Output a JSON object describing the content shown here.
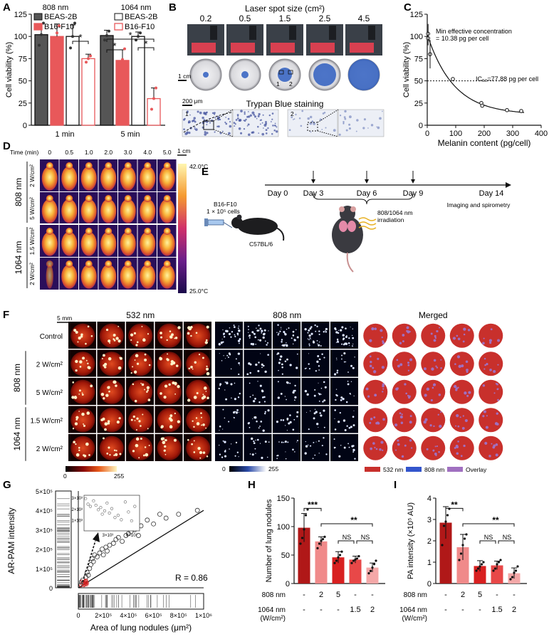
{
  "panels": {
    "A": "A",
    "B": "B",
    "C": "C",
    "D": "D",
    "E": "E",
    "F": "F",
    "G": "G",
    "H": "H",
    "I": "I"
  },
  "colors": {
    "beas": "#555555",
    "b16": "#e8585a",
    "b16_light": "#f4a3a3",
    "axis": "#111111",
    "f_red": "#c8302c",
    "f_blue": "#3355cc",
    "f_purple": "#a070c0"
  },
  "chart_data": [
    {
      "panel": "A",
      "type": "bar",
      "ylabel": "Cell viability (%)",
      "ylim": [
        0,
        125
      ],
      "yticks": [
        0,
        25,
        50,
        75,
        100,
        125
      ],
      "groups": [
        "1 min",
        "5 min"
      ],
      "wavelengths": [
        "808 nm",
        "1064 nm"
      ],
      "legend": [
        [
          "BEAS-2B",
          "B16-F10"
        ],
        [
          "BEAS-2B",
          "B16-F10"
        ]
      ],
      "bars": [
        {
          "group": "1 min",
          "wavelength": "808 nm",
          "cell": "BEAS-2B",
          "value": 102,
          "err": 12,
          "points": [
            90,
            102,
            115
          ]
        },
        {
          "group": "1 min",
          "wavelength": "808 nm",
          "cell": "B16-F10",
          "value": 100,
          "err": 14,
          "points": [
            84,
            104,
            112
          ]
        },
        {
          "group": "1 min",
          "wavelength": "1064 nm",
          "cell": "BEAS-2B",
          "value": 100,
          "err": 13,
          "points": [
            87,
            100,
            115
          ]
        },
        {
          "group": "1 min",
          "wavelength": "1064 nm",
          "cell": "B16-F10",
          "value": 75,
          "err": 5,
          "points": [
            71,
            75,
            78
          ]
        },
        {
          "group": "5 min",
          "wavelength": "808 nm",
          "cell": "BEAS-2B",
          "value": 101,
          "err": 6,
          "points": [
            96,
            101,
            106
          ]
        },
        {
          "group": "5 min",
          "wavelength": "808 nm",
          "cell": "B16-F10",
          "value": 73,
          "err": 12,
          "points": [
            60,
            74,
            86
          ]
        },
        {
          "group": "5 min",
          "wavelength": "1064 nm",
          "cell": "BEAS-2B",
          "value": 100,
          "err": 5,
          "points": [
            96,
            100,
            104
          ]
        },
        {
          "group": "5 min",
          "wavelength": "1064 nm",
          "cell": "B16-F10",
          "value": 30,
          "err": 12,
          "points": [
            18,
            30,
            42
          ]
        }
      ],
      "sig": [
        "*",
        "*",
        "*",
        "*"
      ]
    },
    {
      "panel": "C",
      "type": "scatter",
      "xlabel": "Melanin content (pg/cell)",
      "ylabel": "Cell viability (%)",
      "xlim": [
        0,
        400
      ],
      "ylim": [
        0,
        125
      ],
      "xticks": [
        0,
        100,
        200,
        300,
        400
      ],
      "yticks": [
        0,
        25,
        50,
        75,
        100,
        125
      ],
      "points": [
        [
          3,
          103
        ],
        [
          3,
          98
        ],
        [
          10,
          80
        ],
        [
          90,
          52
        ],
        [
          190,
          25
        ],
        [
          193,
          22
        ],
        [
          280,
          17
        ],
        [
          330,
          16
        ]
      ],
      "fit": {
        "top": 102,
        "bottom": 12,
        "ic50": 77.88
      },
      "annotation_min": "Min effective concentration\n= 10.38 pg per cell",
      "annotation_ic50": "IC₅₀=77.88 pg per cell",
      "reference_y": 50
    },
    {
      "panel": "G",
      "type": "scatter",
      "xlabel": "Area of lung nodules (μm²)",
      "ylabel": "AR-PAM intensity",
      "xlim": [
        0,
        1000000
      ],
      "ylim": [
        0,
        500000
      ],
      "xticks": [
        "0",
        "2×10⁵",
        "4×10⁵",
        "6×10⁵",
        "8×10⁵",
        "1×10⁶"
      ],
      "yticks": [
        "0",
        "1×10⁵",
        "2×10⁵",
        "3×10⁵",
        "4×10⁵",
        "5×10⁵"
      ],
      "r_label": "R = 0.86",
      "points": [
        [
          20000,
          15000
        ],
        [
          25000,
          30000
        ],
        [
          35000,
          40000
        ],
        [
          40000,
          25000
        ],
        [
          60000,
          55000
        ],
        [
          70000,
          80000
        ],
        [
          80000,
          65000
        ],
        [
          90000,
          100000
        ],
        [
          100000,
          120000
        ],
        [
          110000,
          150000
        ],
        [
          120000,
          135000
        ],
        [
          130000,
          170000
        ],
        [
          150000,
          160000
        ],
        [
          170000,
          180000
        ],
        [
          190000,
          200000
        ],
        [
          200000,
          170000
        ],
        [
          220000,
          210000
        ],
        [
          230000,
          190000
        ],
        [
          250000,
          220000
        ],
        [
          280000,
          230000
        ],
        [
          300000,
          250000
        ],
        [
          320000,
          260000
        ],
        [
          350000,
          240000
        ],
        [
          380000,
          270000
        ],
        [
          400000,
          280000
        ],
        [
          420000,
          290000
        ],
        [
          450000,
          300000
        ],
        [
          480000,
          270000
        ],
        [
          500000,
          320000
        ],
        [
          550000,
          350000
        ],
        [
          600000,
          330000
        ],
        [
          650000,
          380000
        ],
        [
          700000,
          360000
        ],
        [
          800000,
          380000
        ],
        [
          950000,
          400000
        ]
      ],
      "inset": {
        "xticks": [
          "3×10³",
          "6×10³"
        ],
        "yticks": [
          "1×10³",
          "2×10³",
          "3×10³"
        ],
        "points": [
          [
            200,
            2900
          ],
          [
            500,
            2400
          ],
          [
            800,
            2200
          ],
          [
            1200,
            2700
          ],
          [
            1500,
            2300
          ],
          [
            1800,
            1900
          ],
          [
            2100,
            2100
          ],
          [
            2300,
            1500
          ],
          [
            2600,
            1800
          ],
          [
            2900,
            2500
          ],
          [
            3200,
            1600
          ],
          [
            3500,
            2000
          ],
          [
            3900,
            1200
          ],
          [
            4300,
            1400
          ],
          [
            4700,
            1000
          ],
          [
            5200,
            2600
          ],
          [
            5600,
            1700
          ],
          [
            6000,
            900
          ],
          [
            6400,
            2200
          ]
        ]
      }
    },
    {
      "panel": "H",
      "type": "bar",
      "ylabel": "Number of lung nodules",
      "ylim": [
        0,
        150
      ],
      "yticks": [
        0,
        50,
        100,
        150
      ],
      "values": [
        98,
        74,
        46,
        42,
        28
      ],
      "errors": [
        25,
        8,
        10,
        6,
        8
      ],
      "points": [
        [
          70,
          80,
          95,
          120,
          130
        ],
        [
          62,
          70,
          75,
          78,
          82
        ],
        [
          36,
          40,
          46,
          50,
          56
        ],
        [
          36,
          40,
          42,
          44,
          48
        ],
        [
          18,
          22,
          28,
          34,
          40
        ]
      ],
      "row1_label": "808 nm",
      "row1": [
        "-",
        "2",
        "5",
        "-",
        "-"
      ],
      "row2_label": "1064 nm",
      "row2_unit": "(W/cm²)",
      "row2": [
        "-",
        "-",
        "-",
        "1.5",
        "2"
      ],
      "sig": [
        "***",
        "**",
        "NS",
        "NS"
      ]
    },
    {
      "panel": "I",
      "type": "bar",
      "ylabel": "PA intensity (×10⁵ AU)",
      "ylim": [
        0,
        4
      ],
      "yticks": [
        0,
        1,
        2,
        3,
        4
      ],
      "values": [
        2.85,
        1.7,
        0.82,
        0.85,
        0.48
      ],
      "errors": [
        0.75,
        0.6,
        0.25,
        0.2,
        0.25
      ],
      "points": [
        [
          1.8,
          2.7,
          2.9,
          3.2,
          3.5
        ],
        [
          1.1,
          1.4,
          1.8,
          2.1,
          2.3
        ],
        [
          0.6,
          0.7,
          0.8,
          0.9,
          1.0
        ],
        [
          0.6,
          0.7,
          0.9,
          1.0,
          1.1
        ],
        [
          0.2,
          0.3,
          0.5,
          0.6,
          0.8
        ]
      ],
      "row1_label": "808 nm",
      "row1": [
        "-",
        "2",
        "5",
        "-",
        "-"
      ],
      "row2_label": "1064 nm",
      "row2_unit": "(W/cm²)",
      "row2": [
        "-",
        "-",
        "-",
        "1.5",
        "2"
      ],
      "sig": [
        "**",
        "**",
        "NS",
        "NS"
      ]
    }
  ],
  "panel_b": {
    "title": "Laser spot size (cm²)",
    "sizes": [
      "0.2",
      "0.5",
      "1.5",
      "2.5",
      "4.5"
    ],
    "scale_1cm": "1 cm",
    "scale_200um": "200 μm",
    "staining": "Trypan Blue staining",
    "box1": "1",
    "box2": "2"
  },
  "panel_d": {
    "time_label": "Time (min)",
    "times": [
      "0",
      "0.5",
      "1.0",
      "2.0",
      "3.0",
      "4.0",
      "5.0"
    ],
    "scale": "1 cm",
    "colorbar_max": "42.0°C",
    "colorbar_min": "25.0°C",
    "groups": [
      {
        "wavelength": "808 nm",
        "rows": [
          "2 W/cm²",
          "5 W/cm²"
        ]
      },
      {
        "wavelength": "1064 nm",
        "rows": [
          "1.5 W/cm²",
          "2 W/cm²"
        ]
      }
    ]
  },
  "panel_e": {
    "days": [
      "Day 0",
      "Day 3",
      "Day 6",
      "Day 9",
      "Day 14"
    ],
    "cells": "B16-F10",
    "cells_count": "1 × 10⁵ cells",
    "mouse": "C57BL/6",
    "irradiation": "808/1064 nm\nirradiation",
    "endpoint": "Imaging and spirometry"
  },
  "panel_f": {
    "scale": "5 mm",
    "columns": [
      "532 nm",
      "808 nm",
      "Merged"
    ],
    "row_labels": [
      "Control",
      "2 W/cm²",
      "5 W/cm²",
      "1.5 W/cm²",
      "2 W/cm²"
    ],
    "group_labels": [
      "808 nm",
      "1064 nm"
    ],
    "cb_min": "0",
    "cb_max": "255",
    "legend": [
      "532 nm",
      "808 nm",
      "Overlay"
    ]
  }
}
